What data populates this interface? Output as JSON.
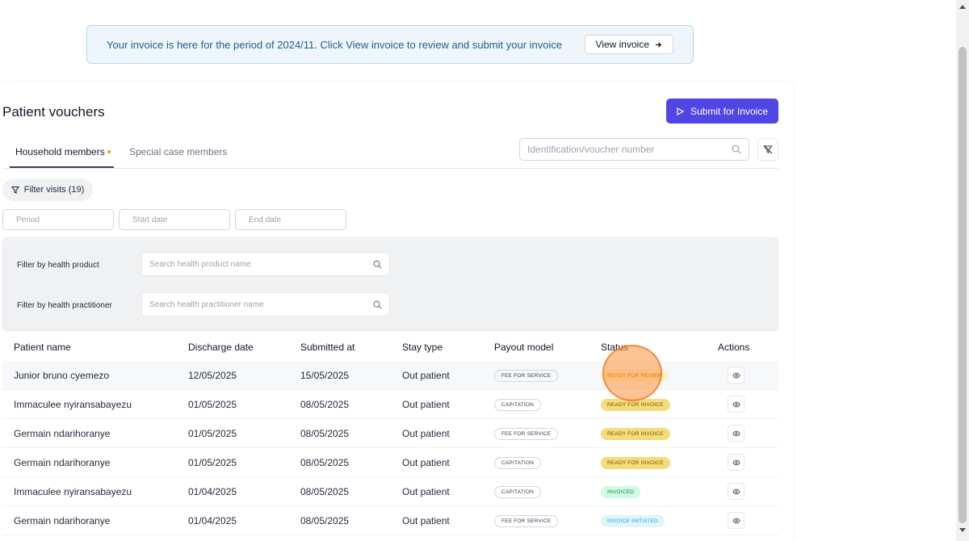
{
  "banner": {
    "text": "Your invoice is here for the period of 2024/11. Click View invoice to review and submit your invoice",
    "button_label": "View invoice"
  },
  "page": {
    "title": "Patient vouchers",
    "submit_label": "Submit for Invoice"
  },
  "tabs": [
    {
      "label": "Household members",
      "active": true
    },
    {
      "label": "Special case members",
      "active": false
    }
  ],
  "search": {
    "placeholder": "Identification/voucher number"
  },
  "filter_chip": {
    "label": "Filter visits (19)"
  },
  "dates": {
    "period_placeholder": "Period",
    "start_placeholder": "Start date",
    "end_placeholder": "End date"
  },
  "filters": {
    "product_label": "Filter by health product",
    "product_placeholder": "Search health product name",
    "practitioner_label": "Filter by health practitioner",
    "practitioner_placeholder": "Search health practitioner name"
  },
  "table": {
    "headers": [
      "Patient name",
      "Discharge date",
      "Submitted at",
      "Stay type",
      "Payout model",
      "Status",
      "Actions"
    ],
    "rows": [
      {
        "name": "Junior bruno cyemezo",
        "discharge": "12/05/2025",
        "submitted": "15/05/2025",
        "stay": "Out patient",
        "payout": "FEE FOR SERVICE",
        "status": "READY FOR REVIEW"
      },
      {
        "name": "Immaculee nyiransabayezu",
        "discharge": "01/05/2025",
        "submitted": "08/05/2025",
        "stay": "Out patient",
        "payout": "CAPITATION",
        "status": "READY FOR INVOICE"
      },
      {
        "name": "Germain ndarihoranye",
        "discharge": "01/05/2025",
        "submitted": "08/05/2025",
        "stay": "Out patient",
        "payout": "FEE FOR SERVICE",
        "status": "READY FOR INVOICE"
      },
      {
        "name": "Germain ndarihoranye",
        "discharge": "01/05/2025",
        "submitted": "08/05/2025",
        "stay": "Out patient",
        "payout": "CAPITATION",
        "status": "READY FOR INVOICE"
      },
      {
        "name": "Immaculee nyiransabayezu",
        "discharge": "01/04/2025",
        "submitted": "08/05/2025",
        "stay": "Out patient",
        "payout": "CAPITATION",
        "status": "INVOICED"
      },
      {
        "name": "Germain ndarihoranye",
        "discharge": "01/04/2025",
        "submitted": "08/05/2025",
        "stay": "Out patient",
        "payout": "FEE FOR SERVICE",
        "status": "INVOICE INITIATED"
      }
    ]
  },
  "status_colors": {
    "READY FOR REVIEW": {
      "bg": "#fef3c7",
      "fg": "#b45309"
    },
    "READY FOR INVOICE": {
      "bg": "#f5dc7a",
      "fg": "#78520a"
    },
    "INVOICED": {
      "bg": "#d1fae5",
      "fg": "#15803d"
    },
    "INVOICE INITIATED": {
      "bg": "#dff4fb",
      "fg": "#2aa9c9"
    }
  },
  "colors": {
    "accent": "#4f46e5",
    "tab_dot": "#f59e0b"
  }
}
